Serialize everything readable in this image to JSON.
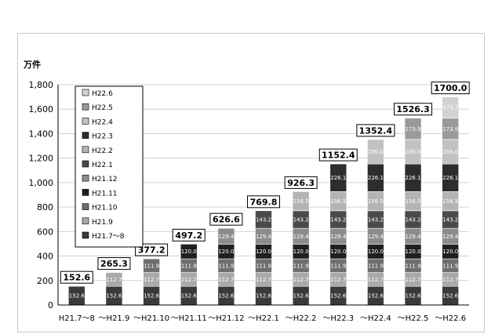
{
  "chart_data": {
    "type": "bar",
    "stacked": true,
    "title": "",
    "unit": "万件",
    "ylim": [
      0,
      1800
    ],
    "yticks": [
      "0",
      "200",
      "400",
      "600",
      "800",
      "1,000",
      "1,200",
      "1,400",
      "1,600",
      "1,800"
    ],
    "ytick_values": [
      0,
      200,
      400,
      600,
      800,
      1000,
      1200,
      1400,
      1600,
      1800
    ],
    "categories": [
      "H21.7～8",
      "～H21.9",
      "～H21.10",
      "～H21.11",
      "～H21.12",
      "～H22.1",
      "～H22.2",
      "～H22.3",
      "～H22.4",
      "～H22.5",
      "～H22.6"
    ],
    "totals": [
      "152.6",
      "265.3",
      "377.2",
      "497.2",
      "626.6",
      "769.8",
      "926.3",
      "1152.4",
      "1352.4",
      "1526.3",
      "1700.0"
    ],
    "total_values": [
      152.6,
      265.3,
      377.2,
      497.2,
      626.6,
      769.8,
      926.3,
      1152.4,
      1352.4,
      1526.3,
      1700.0
    ],
    "legend_position": "top-left",
    "series": [
      {
        "name": "H21.7～8",
        "value": 152.6,
        "label": "152.6",
        "start": 0,
        "color": "#3a3a3a"
      },
      {
        "name": "H21.9",
        "value": 112.7,
        "label": "112.7",
        "start": 1,
        "color": "#a9a9a9"
      },
      {
        "name": "H21.10",
        "value": 111.9,
        "label": "111.9",
        "start": 2,
        "color": "#6e6e6e"
      },
      {
        "name": "H21.11",
        "value": 120.0,
        "label": "120.0",
        "start": 3,
        "color": "#1f1f1f"
      },
      {
        "name": "H21.12",
        "value": 129.4,
        "label": "129.4",
        "start": 4,
        "color": "#8c8c8c"
      },
      {
        "name": "H22.1",
        "value": 143.2,
        "label": "143.2",
        "start": 5,
        "color": "#4a4a4a"
      },
      {
        "name": "H22.2",
        "value": 156.5,
        "label": "156.5",
        "start": 6,
        "color": "#b4b4b4"
      },
      {
        "name": "H22.3",
        "value": 226.1,
        "label": "226.1",
        "start": 7,
        "color": "#2d2d2d"
      },
      {
        "name": "H22.4",
        "value": 200.0,
        "label": "200.0",
        "start": 8,
        "color": "#c2c2c2"
      },
      {
        "name": "H22.5",
        "value": 173.9,
        "label": "173.9",
        "start": 9,
        "color": "#9a9a9a"
      },
      {
        "name": "H22.6",
        "value": 173.7,
        "label": "173.7",
        "start": 10,
        "color": "#d2d2d2"
      }
    ]
  }
}
